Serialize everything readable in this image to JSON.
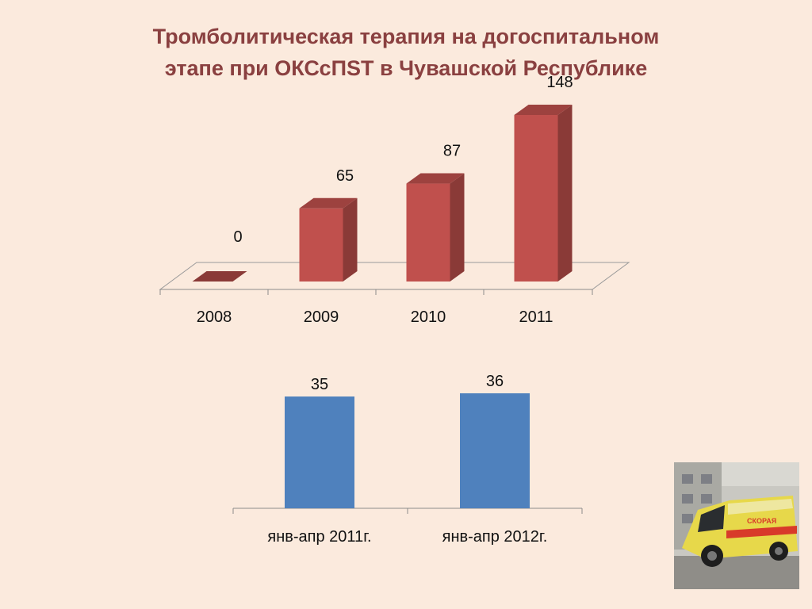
{
  "title_lines": [
    "Тромболитическая терапия на догоспитальном",
    "этапе при ОКСсПST в Чувашской Республике"
  ],
  "chart_data": [
    {
      "type": "bar",
      "style": "3d",
      "categories": [
        "2008",
        "2009",
        "2010",
        "2011"
      ],
      "values": [
        0,
        65,
        87,
        148
      ],
      "data_labels": [
        "0",
        "65",
        "87",
        "148"
      ],
      "color": "#c0504d",
      "grid": false,
      "legend": "none"
    },
    {
      "type": "bar",
      "categories": [
        "янв-апр 2011г.",
        "янв-апр 2012г."
      ],
      "values": [
        35,
        36
      ],
      "data_labels": [
        "35",
        "36"
      ],
      "color": "#4f81bd",
      "grid": false,
      "legend": "none"
    }
  ],
  "photo": {
    "ambulance_label": "СКОРАЯ",
    "colors": {
      "body": "#e7d84a",
      "stripe": "#d83a2a"
    }
  }
}
